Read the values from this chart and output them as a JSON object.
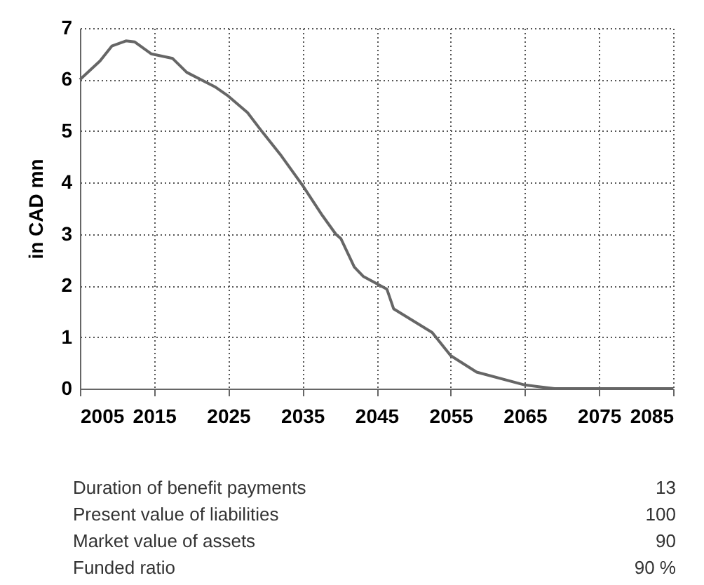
{
  "chart_data": {
    "type": "line",
    "ylabel": "in CAD mn",
    "x": [
      2005,
      2007.7,
      2009.3,
      2011.2,
      2012.4,
      2014.6,
      2017.5,
      2019.4,
      2023.2,
      2025,
      2027.6,
      2029.5,
      2032,
      2035,
      2037.7,
      2039.5,
      2040.2,
      2042,
      2043.2,
      2046.4,
      2047.3,
      2052.5,
      2055,
      2058.5,
      2065,
      2069,
      2075,
      2085
    ],
    "series": [
      {
        "color": "#666666",
        "values": [
          6.0,
          6.36,
          6.65,
          6.75,
          6.73,
          6.5,
          6.41,
          6.14,
          5.86,
          5.68,
          5.36,
          5.0,
          4.55,
          3.95,
          3.36,
          3.0,
          2.91,
          2.36,
          2.18,
          1.93,
          1.55,
          1.09,
          0.64,
          0.32,
          0.07,
          0,
          0,
          0
        ]
      }
    ],
    "xlim": [
      2005,
      2085
    ],
    "xticks": [
      2005,
      2015,
      2025,
      2035,
      2045,
      2055,
      2065,
      2075,
      2085
    ],
    "ylim": [
      0,
      7
    ],
    "yticks": [
      0,
      1,
      2,
      3,
      4,
      5,
      6,
      7
    ],
    "grid": true,
    "marker": "none",
    "line_style": "solid",
    "annotations": [
      "Duration of benefit payments",
      "13",
      "Present value of liabilities",
      "100",
      "Market value of assets",
      "90",
      "Funded ratio",
      "90 %"
    ]
  }
}
